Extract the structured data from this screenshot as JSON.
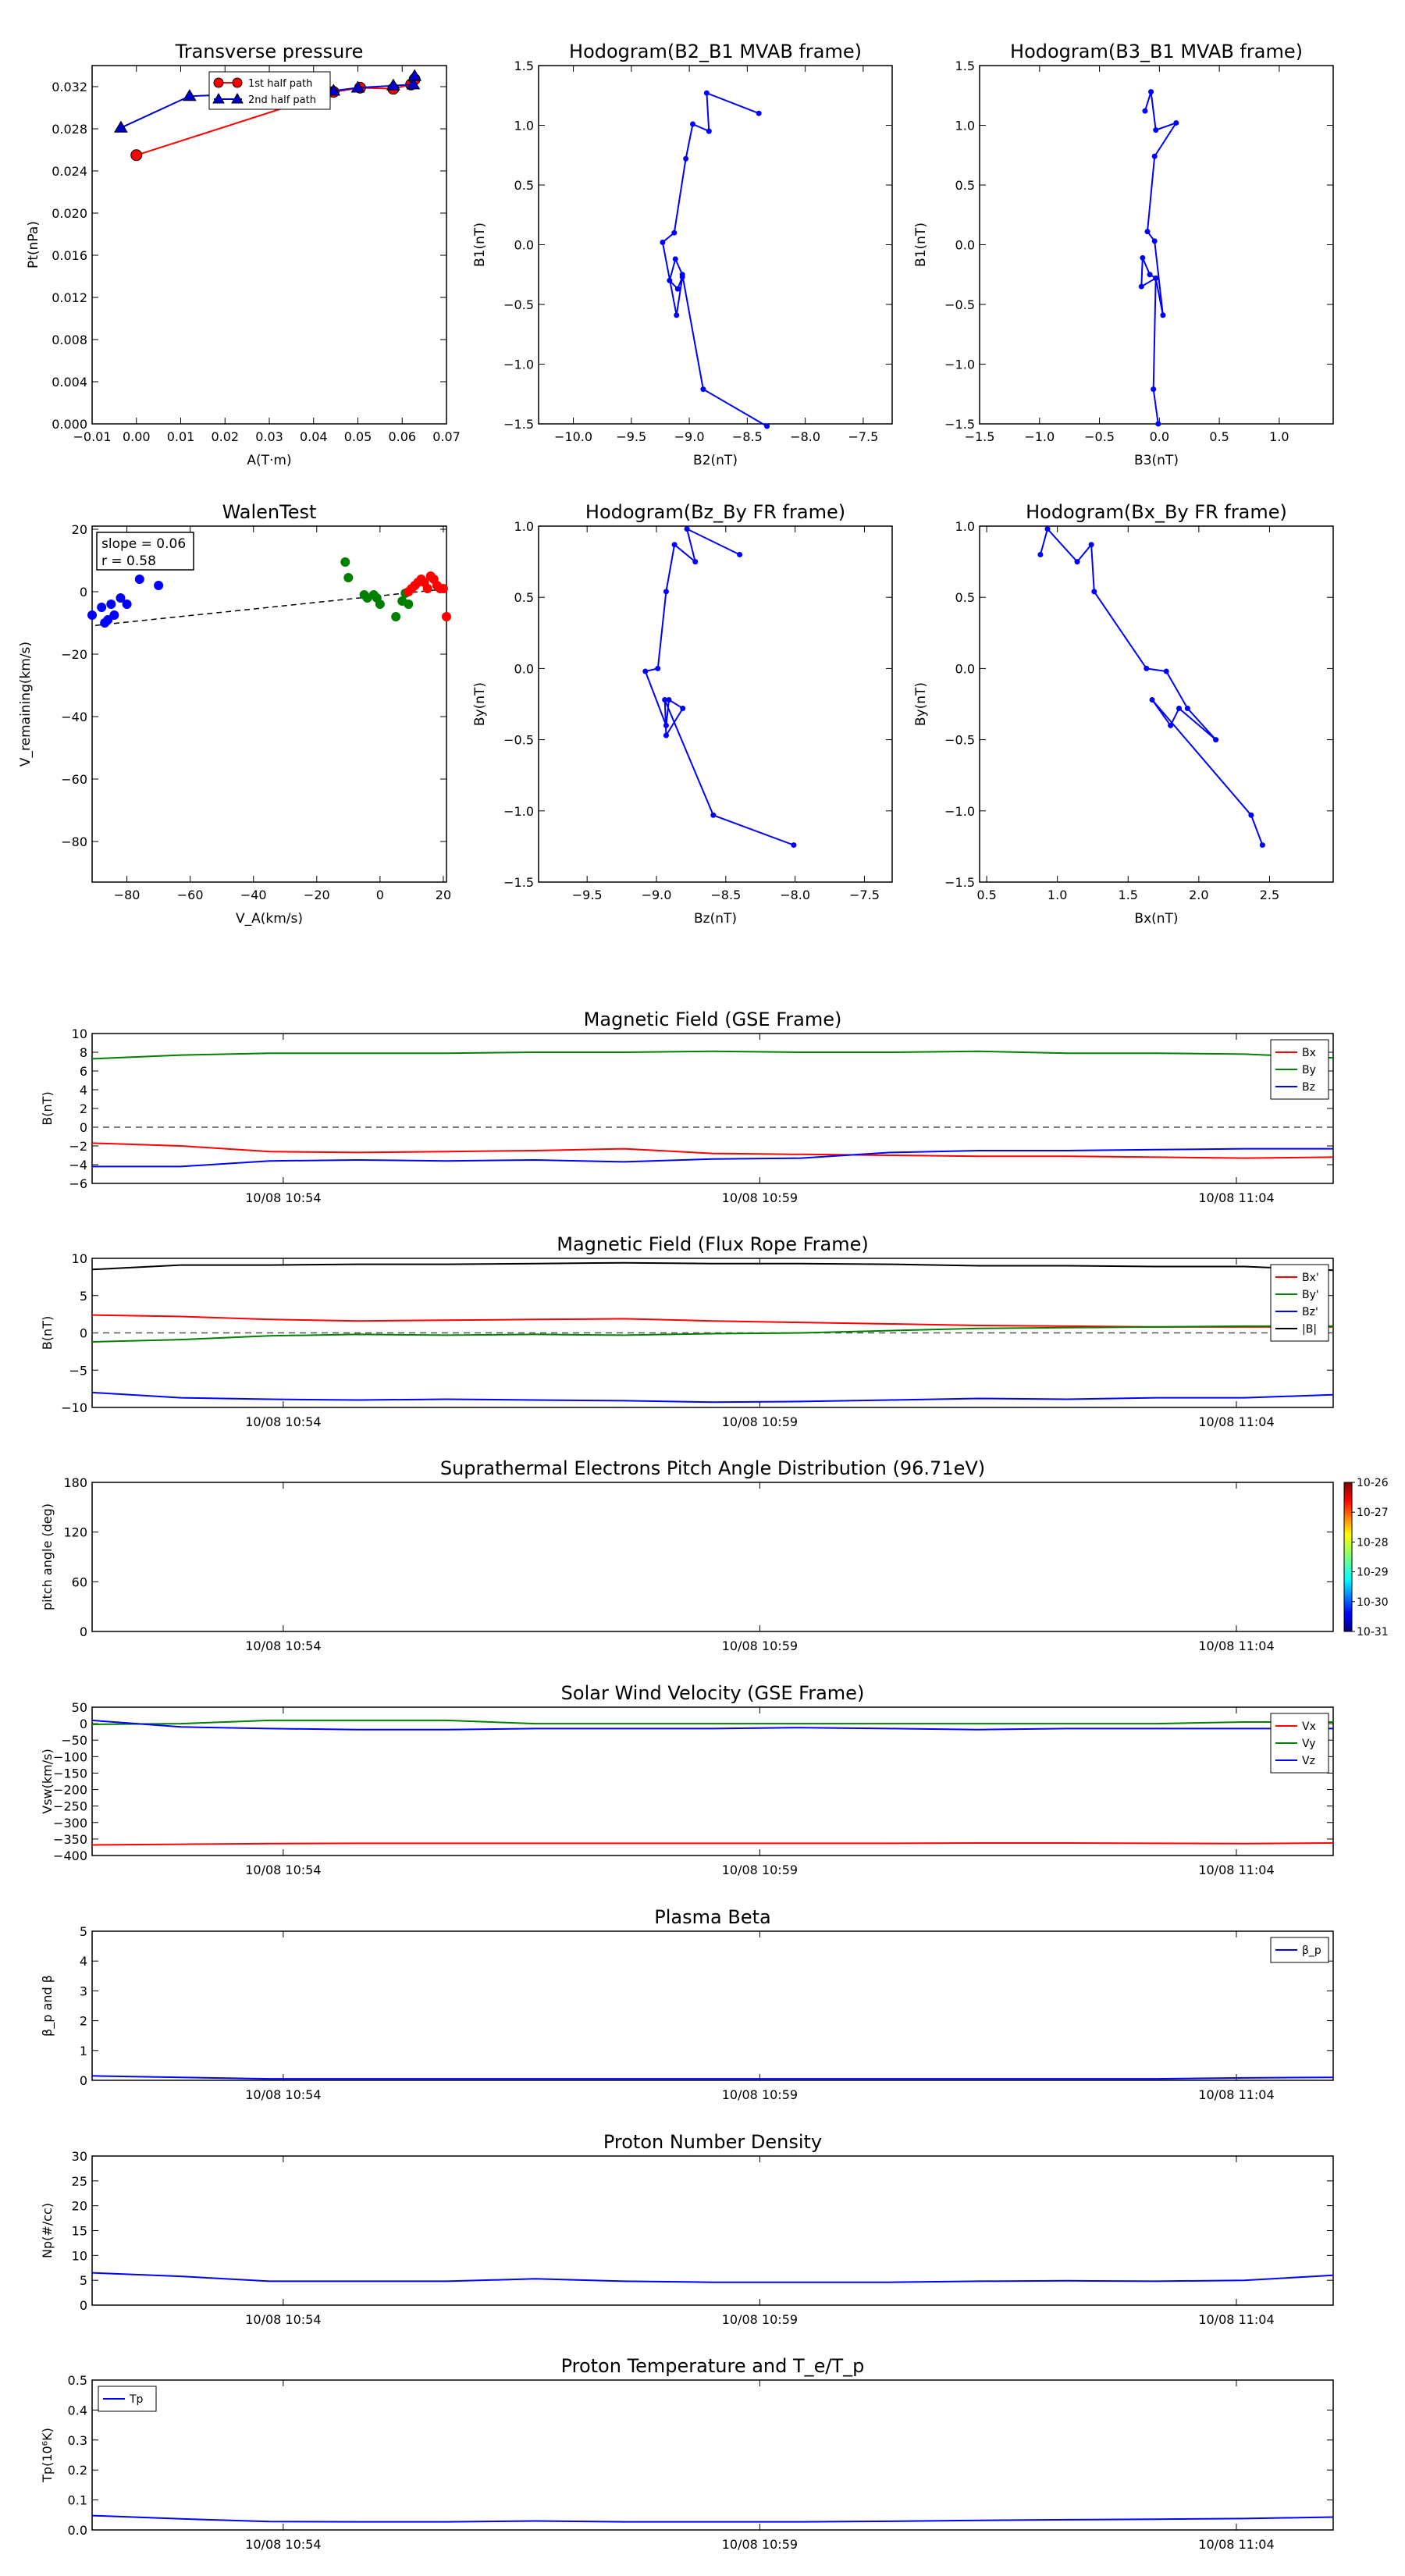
{
  "chart_data": [
    {
      "id": "tp",
      "type": "scatter",
      "title": "Transverse pressure",
      "xlabel": "A(T·m)",
      "ylabel": "Pt(nPa)",
      "xlim": [
        -0.01,
        0.07
      ],
      "ylim": [
        0.0,
        0.034
      ],
      "xticks": [
        -0.01,
        0.0,
        0.01,
        0.02,
        0.03,
        0.04,
        0.05,
        0.06,
        0.07
      ],
      "xticklabels": [
        "−0.01",
        "0.00",
        "0.01",
        "0.02",
        "0.03",
        "0.04",
        "0.05",
        "0.06",
        "0.07"
      ],
      "yticks": [
        0.0,
        0.004,
        0.008,
        0.012,
        0.016,
        0.02,
        0.024,
        0.028,
        0.032
      ],
      "yticklabels": [
        "0.000",
        "0.004",
        "0.008",
        "0.012",
        "0.016",
        "0.020",
        "0.024",
        "0.028",
        "0.032"
      ],
      "legend": "top-center",
      "series": [
        {
          "name": "1st half path",
          "color": "#ff0000",
          "marker": "circle",
          "x": [
            0.0,
            0.0445,
            0.0505,
            0.058,
            0.062,
            0.0628
          ],
          "y": [
            0.0255,
            0.0315,
            0.0319,
            0.0318,
            0.0322,
            0.0327
          ]
        },
        {
          "name": "2nd half path",
          "color": "#0000cc",
          "marker": "triangle",
          "x": [
            -0.0035,
            0.012,
            0.0445,
            0.05,
            0.058,
            0.0625,
            0.0628
          ],
          "y": [
            0.0281,
            0.0311,
            0.0316,
            0.0319,
            0.0321,
            0.0322,
            0.033
          ]
        }
      ]
    },
    {
      "id": "h1",
      "type": "line",
      "title": "Hodogram(B2_B1 MVAB frame)",
      "xlabel": "B2(nT)",
      "ylabel": "B1(nT)",
      "xlim": [
        -10.3,
        -7.25
      ],
      "ylim": [
        -1.5,
        1.5
      ],
      "xticks": [
        -10.0,
        -9.5,
        -9.0,
        -8.5,
        -8.0,
        -7.5
      ],
      "xticklabels": [
        "−10.0",
        "−9.5",
        "−9.0",
        "−8.5",
        "−8.0",
        "−7.5"
      ],
      "yticks": [
        -1.5,
        -1.0,
        -0.5,
        0.0,
        0.5,
        1.0,
        1.5
      ],
      "yticklabels": [
        "−1.5",
        "−1.0",
        "−0.5",
        "0.0",
        "0.5",
        "1.0",
        "1.5"
      ],
      "series": [
        {
          "color": "#0000ff",
          "x": [
            -8.4,
            -8.85,
            -8.83,
            -8.97,
            -9.03,
            -9.13,
            -9.23,
            -9.11,
            -9.06,
            -9.1,
            -9.17,
            -9.12,
            -9.06,
            -8.88,
            -8.33
          ],
          "y": [
            1.1,
            1.27,
            0.95,
            1.01,
            0.72,
            0.1,
            0.02,
            -0.59,
            -0.27,
            -0.37,
            -0.3,
            -0.12,
            -0.25,
            -1.21,
            -1.52
          ]
        }
      ]
    },
    {
      "id": "h2",
      "type": "line",
      "title": "Hodogram(B3_B1 MVAB frame)",
      "xlabel": "B3(nT)",
      "ylabel": "B1(nT)",
      "xlim": [
        -1.5,
        1.45
      ],
      "ylim": [
        -1.5,
        1.5
      ],
      "xticks": [
        -1.5,
        -1.0,
        -0.5,
        0.0,
        0.5,
        1.0
      ],
      "xticklabels": [
        "−1.5",
        "−1.0",
        "−0.5",
        "0.0",
        "0.5",
        "1.0"
      ],
      "yticks": [
        -1.5,
        -1.0,
        -0.5,
        0.0,
        0.5,
        1.0,
        1.5
      ],
      "yticklabels": [
        "−1.5",
        "−1.0",
        "−0.5",
        "0.0",
        "0.5",
        "1.0",
        "1.5"
      ],
      "series": [
        {
          "color": "#0000ff",
          "x": [
            -0.12,
            -0.07,
            -0.03,
            0.14,
            -0.04,
            -0.1,
            -0.04,
            0.03,
            -0.03,
            -0.15,
            -0.14,
            -0.08,
            -0.03,
            -0.05,
            -0.01
          ],
          "y": [
            1.12,
            1.28,
            0.96,
            1.02,
            0.74,
            0.11,
            0.03,
            -0.59,
            -0.28,
            -0.35,
            -0.11,
            -0.25,
            -0.28,
            -1.21,
            -1.5
          ]
        }
      ]
    },
    {
      "id": "walen",
      "type": "scatter",
      "title": "WalenTest",
      "xlabel": "V_A(km/s)",
      "ylabel": "V_remaining(km/s)",
      "xlim": [
        -91,
        21
      ],
      "ylim": [
        -93,
        21
      ],
      "xticks": [
        -80,
        -60,
        -40,
        -20,
        0,
        20
      ],
      "xticklabels": [
        "−80",
        "−60",
        "−40",
        "−20",
        "0",
        "20"
      ],
      "yticks": [
        -80,
        -60,
        -40,
        -20,
        0,
        20
      ],
      "yticklabels": [
        "−80",
        "−60",
        "−40",
        "−20",
        "0",
        "20"
      ],
      "annotation": {
        "slope": "slope = 0.06",
        "r": "r = 0.58"
      },
      "fit": {
        "slope": 0.06,
        "intercept": -0.4
      },
      "series": [
        {
          "color": "#0000ff",
          "x": [
            -91,
            -88,
            -87,
            -86,
            -85,
            -84,
            -82,
            -80,
            -76,
            -70
          ],
          "y": [
            -7.5,
            -5,
            -10,
            -9,
            -4,
            -7.5,
            -2,
            -4,
            4,
            2
          ]
        },
        {
          "color": "#008000",
          "x": [
            -11,
            -10,
            -5,
            -4,
            -2,
            -1,
            0,
            5,
            7,
            8,
            9
          ],
          "y": [
            9.5,
            4.5,
            -1,
            -2,
            -1,
            -2,
            -4,
            -8,
            -3,
            -0.5,
            -4
          ]
        },
        {
          "color": "#ff0000",
          "x": [
            9,
            10,
            11,
            12,
            13,
            14,
            15,
            16,
            17,
            18,
            19,
            20,
            21
          ],
          "y": [
            0,
            1,
            2,
            3,
            4,
            3,
            1,
            5,
            4,
            2,
            1,
            1,
            -8
          ]
        }
      ]
    },
    {
      "id": "h3",
      "type": "line",
      "title": "Hodogram(Bz_By FR frame)",
      "xlabel": "Bz(nT)",
      "ylabel": "By(nT)",
      "xlim": [
        -9.85,
        -7.3
      ],
      "ylim": [
        -1.5,
        1.0
      ],
      "xticks": [
        -9.5,
        -9.0,
        -8.5,
        -8.0,
        -7.5
      ],
      "xticklabels": [
        "−9.5",
        "−9.0",
        "−8.5",
        "−8.0",
        "−7.5"
      ],
      "yticks": [
        -1.5,
        -1.0,
        -0.5,
        0.0,
        0.5,
        1.0
      ],
      "yticklabels": [
        "−1.5",
        "−1.0",
        "−0.5",
        "0.0",
        "0.5",
        "1.0"
      ],
      "series": [
        {
          "color": "#0000ff",
          "x": [
            -8.4,
            -8.78,
            -8.72,
            -8.87,
            -8.93,
            -8.99,
            -9.08,
            -8.93,
            -8.91,
            -8.81,
            -8.93,
            -8.94,
            -8.59,
            -8.01
          ],
          "y": [
            0.8,
            0.98,
            0.75,
            0.87,
            0.54,
            0.0,
            -0.02,
            -0.4,
            -0.22,
            -0.28,
            -0.47,
            -0.22,
            -1.03,
            -1.24
          ]
        }
      ]
    },
    {
      "id": "h4",
      "type": "line",
      "title": "Hodogram(Bx_By FR frame)",
      "xlabel": "Bx(nT)",
      "ylabel": "By(nT)",
      "xlim": [
        0.45,
        2.95
      ],
      "ylim": [
        -1.5,
        1.0
      ],
      "xticks": [
        0.5,
        1.0,
        1.5,
        2.0,
        2.5
      ],
      "xticklabels": [
        "0.5",
        "1.0",
        "1.5",
        "2.0",
        "2.5"
      ],
      "yticks": [
        -1.5,
        -1.0,
        -0.5,
        0.0,
        0.5,
        1.0
      ],
      "yticklabels": [
        "−1.5",
        "−1.0",
        "−0.5",
        "0.0",
        "0.5",
        "1.0"
      ],
      "series": [
        {
          "color": "#0000ff",
          "x": [
            0.88,
            0.93,
            1.14,
            1.24,
            1.26,
            1.63,
            1.77,
            1.92,
            2.12,
            1.86,
            1.8,
            1.67,
            2.37,
            2.45
          ],
          "y": [
            0.8,
            0.98,
            0.75,
            0.87,
            0.54,
            0.0,
            -0.02,
            -0.28,
            -0.5,
            -0.28,
            -0.4,
            -0.22,
            -1.03,
            -1.24
          ]
        }
      ]
    },
    {
      "id": "mag_gse",
      "type": "line",
      "title": "Magnetic Field (GSE Frame)",
      "ylabel": "B(nT)",
      "ylim": [
        -6,
        10
      ],
      "yticks": [
        -6,
        -4,
        -2,
        0,
        2,
        4,
        6,
        8,
        10
      ],
      "yticklabels": [
        "−6",
        "−4",
        "−2",
        "0",
        "2",
        "4",
        "6",
        "8",
        "10"
      ],
      "legend": "top-right",
      "series": [
        {
          "name": "Bx",
          "color": "#ff0000",
          "values": [
            -1.7,
            -2.0,
            -2.6,
            -2.7,
            -2.6,
            -2.5,
            -2.3,
            -2.8,
            -2.9,
            -3.0,
            -3.1,
            -3.1,
            -3.2,
            -3.3,
            -3.2
          ]
        },
        {
          "name": "By",
          "color": "#008000",
          "values": [
            7.3,
            7.7,
            7.9,
            7.9,
            7.9,
            8.0,
            8.0,
            8.1,
            8.0,
            8.0,
            8.1,
            7.9,
            7.9,
            7.8,
            7.4
          ]
        },
        {
          "name": "Bz",
          "color": "#0000ff",
          "values": [
            -4.2,
            -4.2,
            -3.6,
            -3.5,
            -3.6,
            -3.5,
            -3.7,
            -3.4,
            -3.3,
            -2.7,
            -2.5,
            -2.5,
            -2.4,
            -2.3,
            -2.3
          ]
        }
      ]
    },
    {
      "id": "mag_fr",
      "type": "line",
      "title": "Magnetic Field (Flux Rope Frame)",
      "ylabel": "B(nT)",
      "ylim": [
        -10,
        10
      ],
      "yticks": [
        -10,
        -5,
        0,
        5,
        10
      ],
      "yticklabels": [
        "−10",
        "−5",
        "0",
        "5",
        "10"
      ],
      "legend": "top-right",
      "series": [
        {
          "name": "Bx'",
          "color": "#ff0000",
          "values": [
            2.4,
            2.2,
            1.8,
            1.6,
            1.7,
            1.8,
            1.9,
            1.6,
            1.4,
            1.2,
            1.0,
            0.9,
            0.8,
            0.8,
            0.8
          ]
        },
        {
          "name": "By'",
          "color": "#008000",
          "values": [
            -1.2,
            -0.9,
            -0.4,
            -0.2,
            -0.3,
            -0.2,
            -0.3,
            -0.1,
            0.0,
            0.3,
            0.6,
            0.7,
            0.8,
            0.9,
            0.9
          ]
        },
        {
          "name": "Bz'",
          "color": "#0000ff",
          "values": [
            -8.0,
            -8.7,
            -8.9,
            -9.0,
            -8.9,
            -9.0,
            -9.1,
            -9.3,
            -9.2,
            -9.0,
            -8.8,
            -8.9,
            -8.7,
            -8.7,
            -8.3
          ]
        },
        {
          "name": "|B|",
          "color": "#000000",
          "values": [
            8.5,
            9.1,
            9.1,
            9.2,
            9.2,
            9.3,
            9.4,
            9.3,
            9.3,
            9.2,
            9.0,
            9.0,
            8.9,
            8.9,
            8.4
          ]
        }
      ]
    },
    {
      "id": "pad",
      "type": "heatmap",
      "title": "Suprathermal Electrons Pitch Angle Distribution (96.71eV)",
      "ylabel": "pitch angle (deg)",
      "ylim": [
        0,
        180
      ],
      "yticks": [
        0,
        60,
        120,
        180
      ],
      "yticklabels": [
        "0",
        "60",
        "120",
        "180"
      ],
      "colorbar": {
        "ticklabels": [
          "10-31",
          "10-30",
          "10-29",
          "10-28",
          "10-27",
          "10-26"
        ]
      }
    },
    {
      "id": "vel",
      "type": "line",
      "title": "Solar Wind Velocity (GSE Frame)",
      "ylabel": "Vsw(km/s)",
      "ylim": [
        -400,
        50
      ],
      "yticks": [
        -400,
        -350,
        -300,
        -250,
        -200,
        -150,
        -100,
        -50,
        0,
        50
      ],
      "yticklabels": [
        "−400",
        "−350",
        "−300",
        "−250",
        "−200",
        "−150",
        "−100",
        "−50",
        "0",
        "50"
      ],
      "legend": "top-right",
      "series": [
        {
          "name": "Vx",
          "color": "#ff0000",
          "values": [
            -368,
            -366,
            -364,
            -363,
            -363,
            -363,
            -363,
            -363,
            -363,
            -363,
            -362,
            -362,
            -363,
            -364,
            -362
          ]
        },
        {
          "name": "Vy",
          "color": "#008000",
          "values": [
            -2,
            0,
            10,
            10,
            10,
            0,
            0,
            0,
            0,
            0,
            0,
            0,
            0,
            5,
            5
          ]
        },
        {
          "name": "Vz",
          "color": "#0000ff",
          "values": [
            10,
            -10,
            -15,
            -18,
            -18,
            -15,
            -15,
            -15,
            -12,
            -15,
            -18,
            -15,
            -15,
            -15,
            -15
          ]
        }
      ]
    },
    {
      "id": "beta",
      "type": "line",
      "title": "Plasma Beta",
      "ylabel": "β_p and β",
      "ylim": [
        0,
        5
      ],
      "yticks": [
        0,
        1,
        2,
        3,
        4,
        5
      ],
      "yticklabels": [
        "0",
        "1",
        "2",
        "3",
        "4",
        "5"
      ],
      "legend": "top-right",
      "series": [
        {
          "name": "β_p",
          "color": "#0000ff",
          "values": [
            0.15,
            0.1,
            0.05,
            0.05,
            0.05,
            0.05,
            0.05,
            0.05,
            0.05,
            0.05,
            0.05,
            0.05,
            0.05,
            0.08,
            0.1
          ]
        }
      ]
    },
    {
      "id": "np",
      "type": "line",
      "title": "Proton Number Density",
      "ylabel": "Np(#/cc)",
      "ylim": [
        0,
        30
      ],
      "yticks": [
        0,
        5,
        10,
        15,
        20,
        25,
        30
      ],
      "yticklabels": [
        "0",
        "5",
        "10",
        "15",
        "20",
        "25",
        "30"
      ],
      "series": [
        {
          "color": "#0000ff",
          "values": [
            6.5,
            5.8,
            4.8,
            4.8,
            4.8,
            5.3,
            4.8,
            4.6,
            4.6,
            4.6,
            4.8,
            4.9,
            4.8,
            5.0,
            6.0
          ]
        }
      ]
    },
    {
      "id": "tpp",
      "type": "line",
      "title": "Proton Temperature and T_e/T_p",
      "ylabel": "Tp(10⁶K)",
      "ylim": [
        0,
        0.5
      ],
      "yticks": [
        0.0,
        0.1,
        0.2,
        0.3,
        0.4,
        0.5
      ],
      "yticklabels": [
        "0.0",
        "0.1",
        "0.2",
        "0.3",
        "0.4",
        "0.5"
      ],
      "legend": "top-left",
      "series": [
        {
          "name": "Tp",
          "color": "#0000ff",
          "values": [
            0.048,
            0.037,
            0.028,
            0.027,
            0.027,
            0.03,
            0.027,
            0.027,
            0.027,
            0.029,
            0.032,
            0.034,
            0.036,
            0.038,
            0.043
          ]
        }
      ]
    }
  ],
  "time_axis": {
    "ticklabels": [
      "10/08 10:54",
      "10/08 10:59",
      "10/08 11:04"
    ],
    "tick_fractions": [
      0.154,
      0.538,
      0.922
    ]
  },
  "reference_lines": {
    "zero_dashed": [
      "mag_gse",
      "mag_fr"
    ]
  }
}
